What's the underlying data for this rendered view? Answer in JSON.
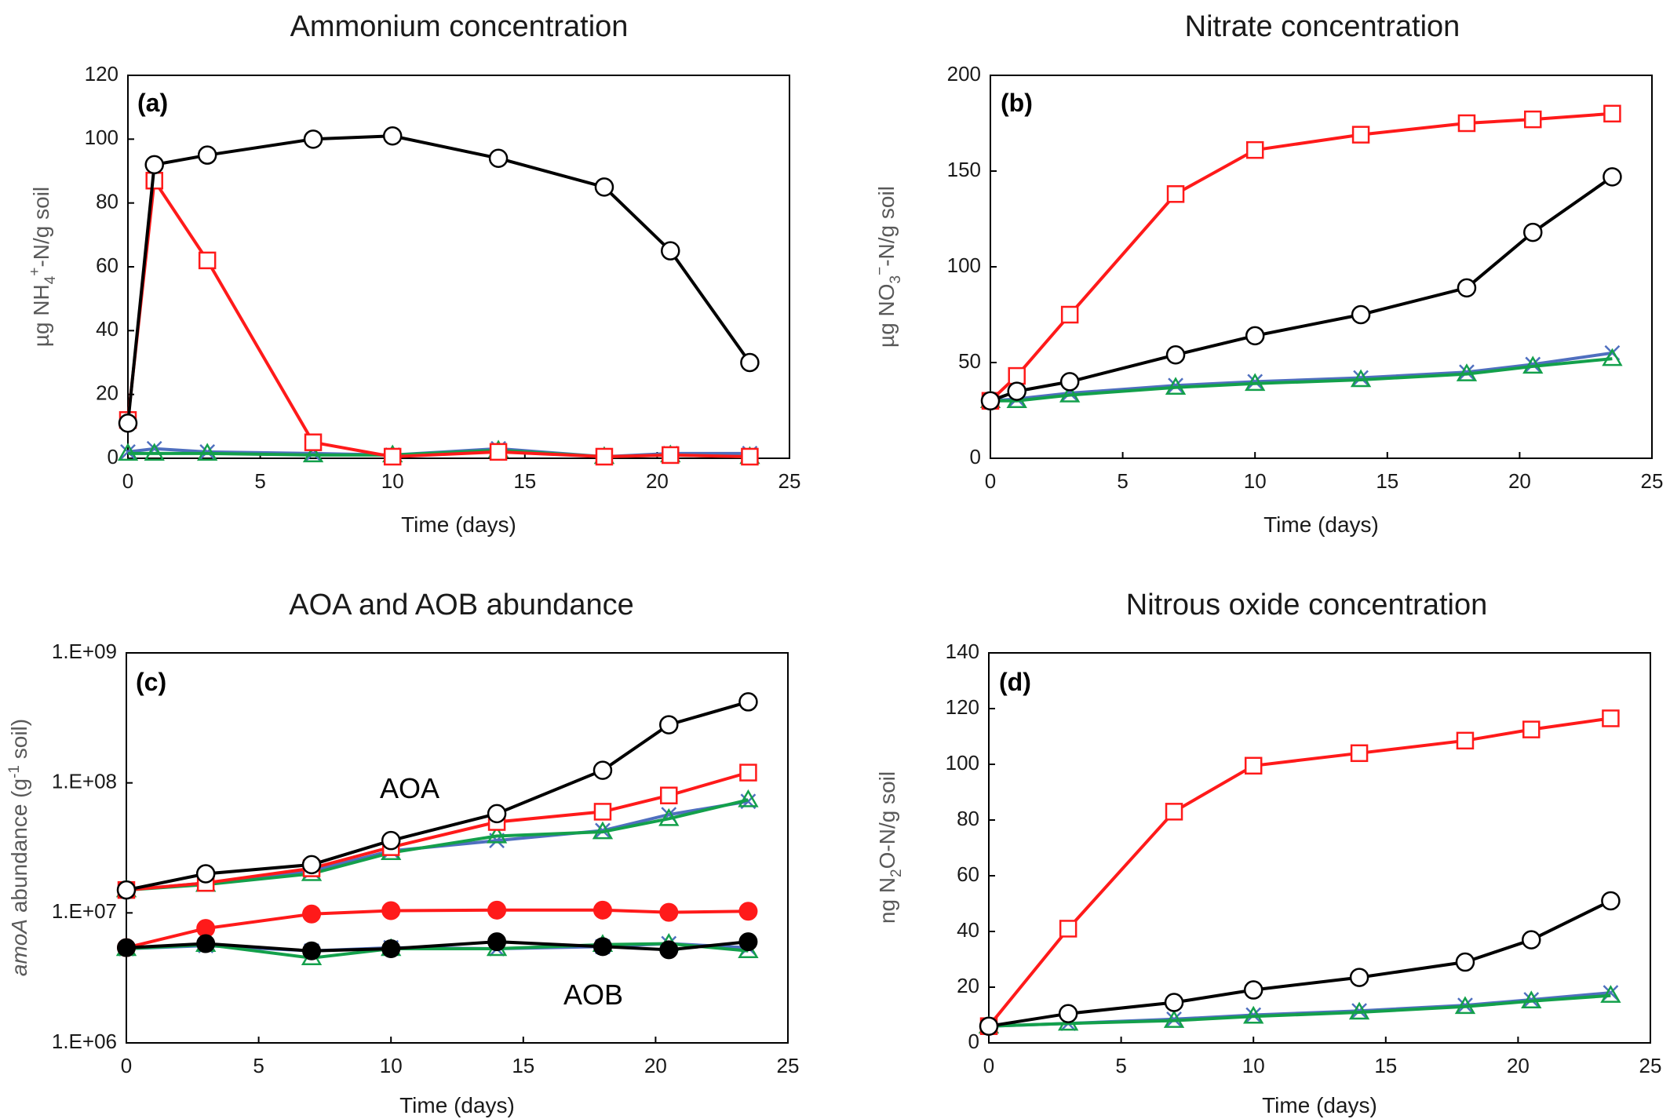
{
  "colors": {
    "black": "#000000",
    "red": "#ff1a1a",
    "blue": "#4f6fbf",
    "green": "#13a04b"
  },
  "chart_data": [
    {
      "type": "line",
      "panel": "(a)",
      "title": "Ammonium concentration",
      "xlabel": "Time (days)",
      "ylabel": {
        "pre": "µg NH",
        "sub": "4",
        "sup": "+",
        "post": "-N/g  soil"
      },
      "xlim": [
        0,
        25
      ],
      "ylim": [
        0,
        120
      ],
      "xticks": [
        "0",
        "5",
        "10",
        "15",
        "20",
        "25"
      ],
      "yticks": [
        "0",
        "20",
        "40",
        "60",
        "80",
        "100",
        "120"
      ],
      "yscale": "linear",
      "grid": false,
      "series": [
        {
          "color": "#4f6fbf",
          "marker": "x",
          "x": [
            0,
            1,
            3,
            7,
            10,
            14,
            18,
            20.5,
            23.5
          ],
          "y": [
            2,
            3,
            2,
            1.5,
            1,
            3,
            0.5,
            1.5,
            1.5
          ]
        },
        {
          "color": "#13a04b",
          "marker": "triangle",
          "x": [
            0,
            1,
            3,
            7,
            10,
            14,
            18,
            20.5,
            23.5
          ],
          "y": [
            1.5,
            1.5,
            1.5,
            1,
            1,
            2.5,
            0.5,
            1,
            0.5
          ]
        },
        {
          "color": "#ff1a1a",
          "marker": "square-open",
          "x": [
            0,
            1,
            3,
            7,
            10,
            14,
            18,
            20.5,
            23.5
          ],
          "y": [
            12,
            87,
            62,
            5,
            0.5,
            2,
            0.5,
            1,
            0.5
          ]
        },
        {
          "color": "#000000",
          "marker": "circle-open",
          "x": [
            0,
            1,
            3,
            7,
            10,
            14,
            18,
            20.5,
            23.5
          ],
          "y": [
            11,
            92,
            95,
            100,
            101,
            94,
            85,
            65,
            30
          ]
        }
      ]
    },
    {
      "type": "line",
      "panel": "(b)",
      "title": "Nitrate concentration",
      "xlabel": "Time (days)",
      "ylabel": {
        "pre": "µg NO",
        "sub": "3",
        "sup": "−",
        "post": "-N/g soil"
      },
      "xlim": [
        0,
        25
      ],
      "ylim": [
        0,
        200
      ],
      "xticks": [
        "0",
        "5",
        "10",
        "15",
        "20",
        "25"
      ],
      "yticks": [
        "0",
        "50",
        "100",
        "150",
        "200"
      ],
      "yscale": "linear",
      "grid": false,
      "series": [
        {
          "color": "#4f6fbf",
          "marker": "x",
          "x": [
            0,
            1,
            3,
            7,
            10,
            14,
            18,
            20.5,
            23.5
          ],
          "y": [
            30,
            31,
            34,
            38,
            40,
            42,
            45,
            49,
            55
          ]
        },
        {
          "color": "#13a04b",
          "marker": "triangle",
          "x": [
            0,
            1,
            3,
            7,
            10,
            14,
            18,
            20.5,
            23.5
          ],
          "y": [
            30,
            30,
            33,
            37,
            39,
            41,
            44,
            48,
            52
          ]
        },
        {
          "color": "#ff1a1a",
          "marker": "square-open",
          "x": [
            0,
            1,
            3,
            7,
            10,
            14,
            18,
            20.5,
            23.5
          ],
          "y": [
            30,
            43,
            75,
            138,
            161,
            169,
            175,
            177,
            180
          ]
        },
        {
          "color": "#000000",
          "marker": "circle-open",
          "x": [
            0,
            1,
            3,
            7,
            10,
            14,
            18,
            20.5,
            23.5
          ],
          "y": [
            30,
            35,
            40,
            54,
            64,
            75,
            89,
            118,
            147
          ]
        }
      ]
    },
    {
      "type": "line",
      "panel": "(c)",
      "title": "AOA and AOB abundance",
      "xlabel": "Time (days)",
      "ylabel": {
        "pre": "amoA",
        "post": " abundance (g",
        "sup": "-1",
        "post2": " soil)"
      },
      "xlim": [
        0,
        25
      ],
      "ylim": [
        1000000,
        1000000000
      ],
      "xticks": [
        "0",
        "5",
        "10",
        "15",
        "20",
        "25"
      ],
      "yticks": [
        "1.E+06",
        "1.E+07",
        "1.E+08",
        "1.E+09"
      ],
      "yscale": "log",
      "grid": false,
      "annotations": [
        "AOA",
        "AOB"
      ],
      "series": [
        {
          "color": "#4f6fbf",
          "marker": "x",
          "x": [
            0,
            3,
            7,
            10,
            14,
            18,
            20.5,
            23.5
          ],
          "y": [
            15000000,
            17000000,
            21000000,
            30000000,
            36000000,
            43000000,
            57000000,
            72000000
          ]
        },
        {
          "color": "#13a04b",
          "marker": "triangle",
          "x": [
            0,
            3,
            7,
            10,
            14,
            18,
            20.5,
            23.5
          ],
          "y": [
            15000000,
            16500000,
            20000000,
            29000000,
            39000000,
            42000000,
            53000000,
            74000000
          ]
        },
        {
          "color": "#ff1a1a",
          "marker": "square-open",
          "x": [
            0,
            3,
            7,
            10,
            14,
            18,
            20.5,
            23.5
          ],
          "y": [
            15000000,
            17000000,
            22000000,
            32000000,
            50000000,
            60000000,
            80000000,
            120000000
          ]
        },
        {
          "color": "#000000",
          "marker": "circle-open",
          "x": [
            0,
            3,
            7,
            10,
            14,
            18,
            20.5,
            23.5
          ],
          "y": [
            15000000,
            20000000,
            23500000,
            36000000,
            58000000,
            125000000,
            280000000,
            420000000
          ]
        },
        {
          "color": "#4f6fbf",
          "marker": "x",
          "x": [
            0,
            3,
            7,
            10,
            14,
            18,
            20.5,
            23.5
          ],
          "y": [
            5300000,
            5600000,
            5100000,
            5400000,
            5300000,
            5500000,
            5800000,
            5400000
          ]
        },
        {
          "color": "#13a04b",
          "marker": "triangle",
          "x": [
            0,
            3,
            7,
            10,
            14,
            18,
            20.5,
            23.5
          ],
          "y": [
            5300000,
            5700000,
            4500000,
            5300000,
            5300000,
            5700000,
            5800000,
            5100000
          ]
        },
        {
          "color": "#ff1a1a",
          "marker": "circle-filled",
          "x": [
            0,
            3,
            7,
            10,
            14,
            18,
            20.5,
            23.5
          ],
          "y": [
            5400000,
            7600000,
            9800000,
            10400000,
            10500000,
            10500000,
            10100000,
            10300000
          ]
        },
        {
          "color": "#000000",
          "marker": "circle-filled",
          "x": [
            0,
            3,
            7,
            10,
            14,
            18,
            20.5,
            23.5
          ],
          "y": [
            5400000,
            5800000,
            5100000,
            5300000,
            6000000,
            5500000,
            5200000,
            6000000
          ]
        }
      ]
    },
    {
      "type": "line",
      "panel": "(d)",
      "title": "Nitrous oxide concentration",
      "xlabel": "Time (days)",
      "ylabel": {
        "pre": "ng N",
        "sub": "2",
        "post": "O-N/g soil"
      },
      "xlim": [
        0,
        25
      ],
      "ylim": [
        0,
        140
      ],
      "xticks": [
        "0",
        "5",
        "10",
        "15",
        "20",
        "25"
      ],
      "yticks": [
        "0",
        "20",
        "40",
        "60",
        "80",
        "100",
        "120",
        "140"
      ],
      "yscale": "linear",
      "grid": false,
      "series": [
        {
          "color": "#4f6fbf",
          "marker": "x",
          "x": [
            0,
            3,
            7,
            10,
            14,
            18,
            20.5,
            23.5
          ],
          "y": [
            6,
            7,
            8.5,
            10,
            11.5,
            13.5,
            15.5,
            18
          ]
        },
        {
          "color": "#13a04b",
          "marker": "triangle",
          "x": [
            0,
            3,
            7,
            10,
            14,
            18,
            20.5,
            23.5
          ],
          "y": [
            6,
            7,
            8,
            9.5,
            11,
            13,
            15,
            17
          ]
        },
        {
          "color": "#ff1a1a",
          "marker": "square-open",
          "x": [
            0,
            3,
            7,
            10,
            14,
            18,
            20.5,
            23.5
          ],
          "y": [
            6,
            41,
            83,
            99.5,
            104,
            108.5,
            112.5,
            116.5
          ]
        },
        {
          "color": "#000000",
          "marker": "circle-open",
          "x": [
            0,
            3,
            7,
            10,
            14,
            18,
            20.5,
            23.5
          ],
          "y": [
            6,
            10.5,
            14.5,
            19,
            23.5,
            29,
            37,
            51
          ]
        }
      ]
    }
  ]
}
